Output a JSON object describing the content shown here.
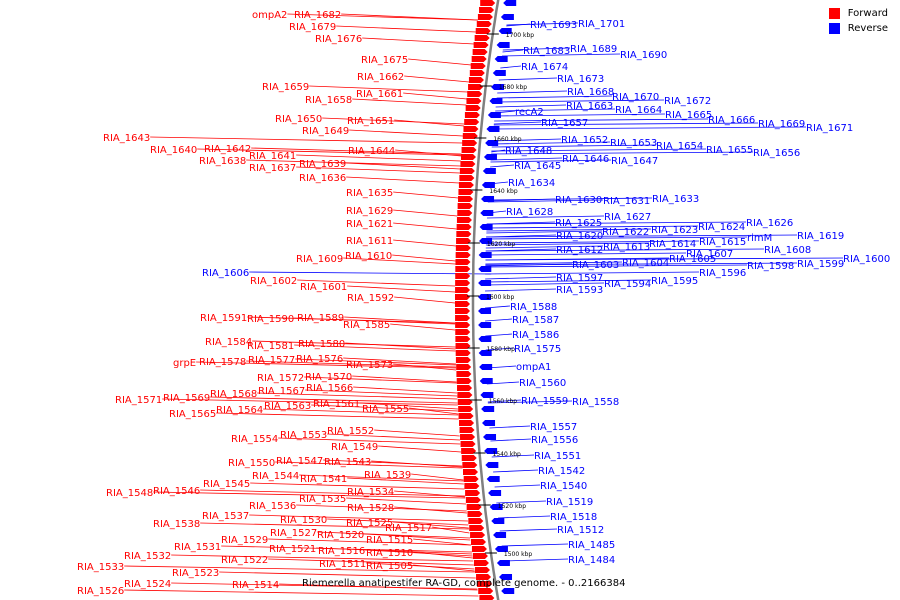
{
  "colors": {
    "forward": "#ff0000",
    "reverse": "#0000ff",
    "backbone": "#808080"
  },
  "legend": {
    "forward_label": "Forward",
    "reverse_label": "Reverse"
  },
  "caption": "Riemerella anatipestifer RA-GD, complete genome. - 0..2166384",
  "kbp_marks": [
    "1700 kbp",
    "1680 kbp",
    "1660 kbp",
    "1640 kbp",
    "1620 kbp",
    "1600 kbp",
    "1580 kbp",
    "1560 kbp",
    "1540 kbp",
    "1520 kbp",
    "1500 kbp"
  ],
  "forward_labels": [
    "ompA2",
    "RIA_1682",
    "RIA_1679",
    "RIA_1676",
    "RIA_1675",
    "RIA_1662",
    "RIA_1659",
    "RIA_1661",
    "RIA_1658",
    "RIA_1650",
    "RIA_1651",
    "RIA_1649",
    "RIA_1643",
    "RIA_1640",
    "RIA_1642",
    "RIA_1644",
    "RIA_1638",
    "RIA_1641",
    "RIA_1637",
    "RIA_1639",
    "RIA_1636",
    "RIA_1635",
    "RIA_1629",
    "RIA_1621",
    "RIA_1611",
    "RIA_1609",
    "RIA_1610",
    "RIA_1602",
    "RIA_1601",
    "RIA_1592",
    "RIA_1591",
    "RIA_1590",
    "RIA_1589",
    "RIA_1585",
    "RIA_1584",
    "RIA_1581",
    "RIA_1580",
    "grpE",
    "RIA_1578",
    "RIA_1577",
    "RIA_1576",
    "RIA_1573",
    "RIA_1572",
    "RIA_1570",
    "RIA_1571",
    "RIA_1569",
    "RIA_1568",
    "RIA_1567",
    "RIA_1566",
    "RIA_1565",
    "RIA_1564",
    "RIA_1563",
    "RIA_1561",
    "RIA_1555",
    "RIA_1554",
    "RIA_1553",
    "RIA_1552",
    "RIA_1549",
    "RIA_1550",
    "RIA_1547",
    "RIA_1543",
    "RIA_1544",
    "RIA_1539",
    "RIA_1545",
    "RIA_1541",
    "RIA_1548",
    "RIA_1546",
    "RIA_1534",
    "RIA_1535",
    "RIA_1536",
    "RIA_1528",
    "RIA_1537",
    "RIA_1530",
    "RIA_1538",
    "RIA_1525",
    "RIA_1527",
    "RIA_1517",
    "RIA_1529",
    "RIA_1520",
    "RIA_1531",
    "RIA_1521",
    "RIA_1515",
    "RIA_1516",
    "RIA_1532",
    "RIA_1522",
    "RIA_1510",
    "RIA_1533",
    "RIA_1523",
    "RIA_1511",
    "RIA_1505",
    "RIA_1524",
    "RIA_1526",
    "RIA_1514"
  ],
  "reverse_labels": [
    "RIA_1606",
    "RIA_1693",
    "RIA_1701",
    "RIA_1683",
    "RIA_1689",
    "RIA_1690",
    "RIA_1674",
    "RIA_1673",
    "RIA_1668",
    "RIA_1670",
    "RIA_1672",
    "RIA_1663",
    "RIA_1664",
    "RIA_1665",
    "RIA_1666",
    "RIA_1669",
    "RIA_1671",
    "recA2",
    "RIA_1657",
    "RIA_1652",
    "RIA_1653",
    "RIA_1654",
    "RIA_1655",
    "RIA_1656",
    "RIA_1648",
    "RIA_1646",
    "RIA_1647",
    "RIA_1645",
    "RIA_1634",
    "RIA_1630",
    "RIA_1631",
    "RIA_1633",
    "RIA_1628",
    "RIA_1627",
    "RIA_1625",
    "RIA_1622",
    "RIA_1623",
    "RIA_1624",
    "RIA_1626",
    "RIA_1620",
    "rimM",
    "RIA_1619",
    "RIA_1615",
    "RIA_1614",
    "RIA_1612",
    "RIA_1613",
    "RIA_1607",
    "RIA_1608",
    "RIA_1605",
    "RIA_1603",
    "RIA_1604",
    "RIA_1598",
    "RIA_1599",
    "RIA_1600",
    "RIA_1597",
    "RIA_1596",
    "RIA_1594",
    "RIA_1595",
    "RIA_1593",
    "RIA_1588",
    "RIA_1587",
    "RIA_1586",
    "RIA_1575",
    "ompA1",
    "RIA_1560",
    "RIA_1559",
    "RIA_1558",
    "RIA_1557",
    "RIA_1556",
    "RIA_1551",
    "RIA_1542",
    "RIA_1540",
    "RIA_1519",
    "RIA_1518",
    "RIA_1512",
    "RIA_1485",
    "RIA_1484"
  ]
}
